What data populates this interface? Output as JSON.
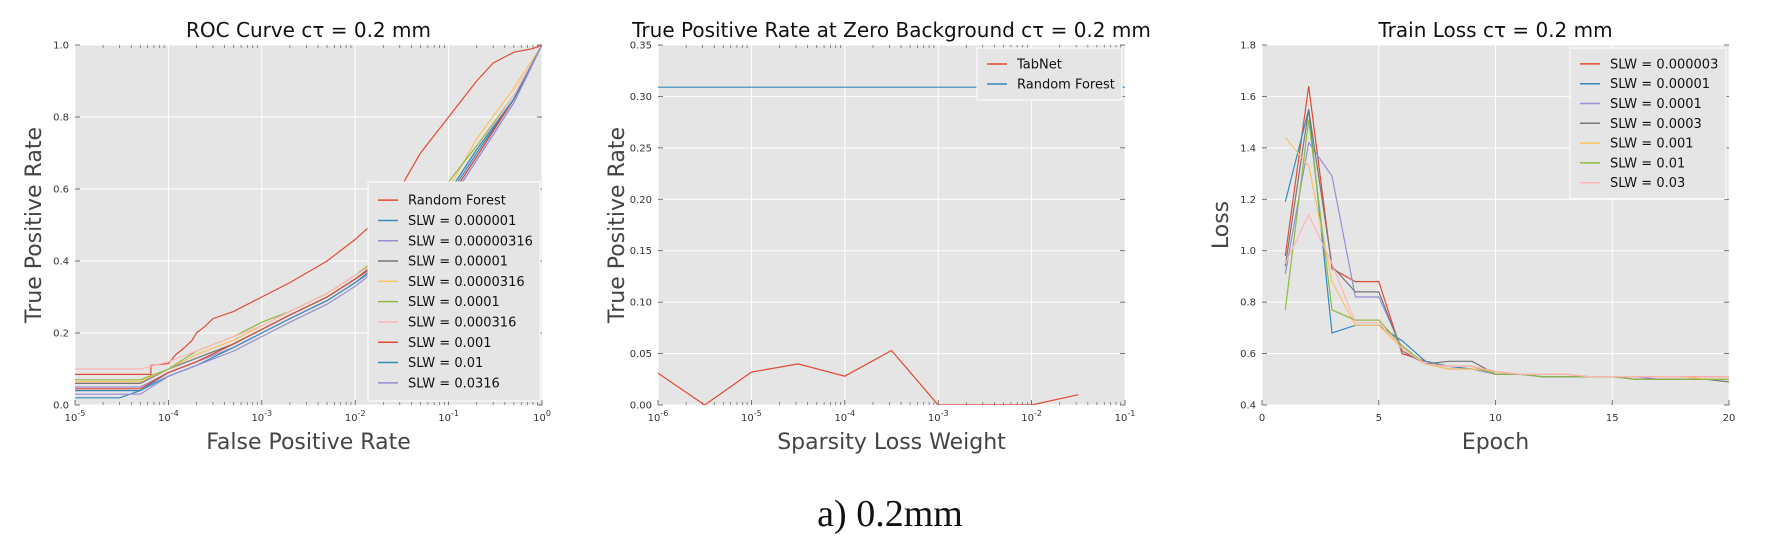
{
  "caption": "a) 0.2mm",
  "chart_data": [
    {
      "type": "line",
      "title": "ROC Curve cτ = 0.2 mm",
      "xlabel": "False Positive Rate",
      "ylabel": "True Positive Rate",
      "xscale": "log",
      "xlim": [
        1e-05,
        1
      ],
      "ylim": [
        0,
        1
      ],
      "xtick_labels": [
        "10-5",
        "10-4",
        "10-3",
        "10-2",
        "10-1",
        "100"
      ],
      "xticks": [
        1e-05,
        0.0001,
        0.001,
        0.01,
        0.1,
        1
      ],
      "ytick_labels": [
        "0.0",
        "0.2",
        "0.4",
        "0.6",
        "0.8",
        "1.0"
      ],
      "yticks": [
        0,
        0.2,
        0.4,
        0.6,
        0.8,
        1.0
      ],
      "grid": true,
      "legend": "lower-right",
      "series": [
        {
          "name": "Random Forest",
          "color": "#e24a33",
          "x": [
            1e-05,
            6.5e-05,
            6.5e-05,
            0.0001,
            0.00012,
            0.00015,
            0.00018,
            0.0002,
            0.00025,
            0.0003,
            0.0005,
            0.001,
            0.002,
            0.005,
            0.01,
            0.02,
            0.03,
            0.05,
            0.1,
            0.2,
            0.3,
            0.5,
            0.8,
            1
          ],
          "y": [
            0.085,
            0.085,
            0.11,
            0.115,
            0.14,
            0.16,
            0.18,
            0.2,
            0.22,
            0.24,
            0.26,
            0.3,
            0.34,
            0.4,
            0.46,
            0.53,
            0.6,
            0.7,
            0.8,
            0.9,
            0.95,
            0.98,
            0.99,
            1.0
          ]
        },
        {
          "name": "SLW = 0.000001",
          "color": "#348abd",
          "x": [
            1e-05,
            5e-05,
            0.0001,
            0.0002,
            0.0005,
            0.001,
            0.002,
            0.005,
            0.01,
            0.02,
            0.05,
            0.1,
            0.2,
            0.5,
            1
          ],
          "y": [
            0.04,
            0.04,
            0.09,
            0.12,
            0.17,
            0.21,
            0.25,
            0.3,
            0.35,
            0.4,
            0.5,
            0.58,
            0.7,
            0.85,
            1.0
          ]
        },
        {
          "name": "SLW = 0.00000316",
          "color": "#988ed5",
          "x": [
            1e-05,
            5e-05,
            0.0001,
            0.0002,
            0.0005,
            0.001,
            0.002,
            0.005,
            0.01,
            0.02,
            0.05,
            0.1,
            0.2,
            0.5,
            1
          ],
          "y": [
            0.05,
            0.05,
            0.09,
            0.12,
            0.16,
            0.2,
            0.24,
            0.29,
            0.34,
            0.39,
            0.48,
            0.56,
            0.68,
            0.84,
            1.0
          ]
        },
        {
          "name": "SLW = 0.00001",
          "color": "#777777",
          "x": [
            1e-05,
            5e-05,
            0.0001,
            0.0002,
            0.0005,
            0.001,
            0.002,
            0.005,
            0.01,
            0.02,
            0.05,
            0.1,
            0.2,
            0.5,
            1
          ],
          "y": [
            0.06,
            0.06,
            0.1,
            0.13,
            0.17,
            0.21,
            0.25,
            0.3,
            0.35,
            0.41,
            0.5,
            0.57,
            0.69,
            0.85,
            1.0
          ]
        },
        {
          "name": "SLW = 0.0000316",
          "color": "#fbc15e",
          "x": [
            1e-05,
            5e-05,
            0.0001,
            0.0002,
            0.0005,
            0.001,
            0.002,
            0.005,
            0.01,
            0.02,
            0.05,
            0.1,
            0.2,
            0.5,
            1
          ],
          "y": [
            0.065,
            0.065,
            0.1,
            0.14,
            0.18,
            0.22,
            0.26,
            0.31,
            0.36,
            0.42,
            0.52,
            0.6,
            0.74,
            0.88,
            1.0
          ]
        },
        {
          "name": "SLW = 0.0001",
          "color": "#8eba42",
          "x": [
            1e-05,
            5e-05,
            0.0001,
            0.0002,
            0.0005,
            0.001,
            0.002,
            0.005,
            0.01,
            0.02,
            0.05,
            0.1,
            0.2,
            0.5,
            1
          ],
          "y": [
            0.07,
            0.07,
            0.1,
            0.15,
            0.19,
            0.23,
            0.26,
            0.31,
            0.36,
            0.42,
            0.53,
            0.62,
            0.72,
            0.86,
            1.0
          ]
        },
        {
          "name": "SLW = 0.000316",
          "color": "#ffb5b8",
          "x": [
            1e-05,
            5e-05,
            0.0001,
            0.0002,
            0.0005,
            0.001,
            0.002,
            0.005,
            0.01,
            0.02,
            0.05,
            0.1,
            0.2,
            0.5,
            1
          ],
          "y": [
            0.1,
            0.1,
            0.12,
            0.15,
            0.19,
            0.22,
            0.26,
            0.31,
            0.36,
            0.41,
            0.51,
            0.59,
            0.71,
            0.86,
            1.0
          ]
        },
        {
          "name": "SLW = 0.001",
          "color": "#e24a33",
          "x": [
            1e-05,
            5e-05,
            0.0001,
            0.0002,
            0.0005,
            0.001,
            0.002,
            0.005,
            0.01,
            0.02,
            0.05,
            0.1,
            0.2,
            0.5,
            1
          ],
          "y": [
            0.045,
            0.045,
            0.09,
            0.12,
            0.17,
            0.21,
            0.25,
            0.3,
            0.35,
            0.4,
            0.49,
            0.57,
            0.69,
            0.85,
            1.0
          ]
        },
        {
          "name": "SLW = 0.01",
          "color": "#348abd",
          "x": [
            1e-05,
            3e-05,
            5e-05,
            0.0001,
            0.0002,
            0.0005,
            0.001,
            0.002,
            0.005,
            0.01,
            0.02,
            0.05,
            0.1,
            0.2,
            0.5,
            1
          ],
          "y": [
            0.02,
            0.02,
            0.04,
            0.08,
            0.11,
            0.16,
            0.2,
            0.24,
            0.29,
            0.34,
            0.4,
            0.5,
            0.59,
            0.71,
            0.85,
            1.0
          ]
        },
        {
          "name": "SLW = 0.0316",
          "color": "#988ed5",
          "x": [
            1e-05,
            5e-05,
            0.0001,
            0.0002,
            0.0005,
            0.001,
            0.002,
            0.005,
            0.01,
            0.02,
            0.05,
            0.1,
            0.2,
            0.5,
            1
          ],
          "y": [
            0.03,
            0.03,
            0.08,
            0.11,
            0.15,
            0.19,
            0.23,
            0.28,
            0.33,
            0.39,
            0.48,
            0.56,
            0.68,
            0.84,
            1.0
          ]
        }
      ]
    },
    {
      "type": "line",
      "title": "True Positive Rate at Zero Background cτ = 0.2 mm",
      "xlabel": "Sparsity Loss Weight",
      "ylabel": "True Positive Rate",
      "xscale": "log",
      "xlim": [
        1e-06,
        0.1
      ],
      "ylim": [
        0,
        0.35
      ],
      "xtick_labels": [
        "10-6",
        "10-5",
        "10-4",
        "10-3",
        "10-2",
        "10-1"
      ],
      "xticks": [
        1e-06,
        1e-05,
        0.0001,
        0.001,
        0.01,
        0.1
      ],
      "ytick_labels": [
        "0.00",
        "0.05",
        "0.10",
        "0.15",
        "0.20",
        "0.25",
        "0.30",
        "0.35"
      ],
      "yticks": [
        0,
        0.05,
        0.1,
        0.15,
        0.2,
        0.25,
        0.3,
        0.35
      ],
      "grid": true,
      "legend": "top-right",
      "series": [
        {
          "name": "TabNet",
          "color": "#e24a33",
          "x": [
            1e-06,
            3.16e-06,
            1e-05,
            3.16e-05,
            0.0001,
            0.000316,
            0.001,
            0.00316,
            0.01,
            0.0316
          ],
          "y": [
            0.031,
            0.0,
            0.032,
            0.04,
            0.028,
            0.053,
            0.0,
            0.0,
            0.0,
            0.01
          ]
        },
        {
          "name": "Random Forest",
          "color": "#348abd",
          "x": [
            1e-06,
            0.1
          ],
          "y": [
            0.309,
            0.309
          ]
        }
      ]
    },
    {
      "type": "line",
      "title": "Train Loss cτ = 0.2 mm",
      "xlabel": "Epoch",
      "ylabel": "Loss",
      "xscale": "linear",
      "xlim": [
        0,
        20
      ],
      "ylim": [
        0.4,
        1.8
      ],
      "xtick_labels": [
        "0",
        "5",
        "10",
        "15",
        "20"
      ],
      "xticks": [
        0,
        5,
        10,
        15,
        20
      ],
      "ytick_labels": [
        "0.4",
        "0.6",
        "0.8",
        "1.0",
        "1.2",
        "1.4",
        "1.6",
        "1.8"
      ],
      "yticks": [
        0.4,
        0.6,
        0.8,
        1.0,
        1.2,
        1.4,
        1.6,
        1.8
      ],
      "grid": true,
      "legend": "top-right",
      "series": [
        {
          "name": "SLW = 0.000003",
          "color": "#e24a33",
          "x": [
            1,
            2,
            3,
            4,
            5,
            6,
            7,
            8,
            9,
            10,
            11,
            12,
            13,
            14,
            15,
            16,
            17,
            18,
            19,
            20
          ],
          "y": [
            0.98,
            1.64,
            0.93,
            0.88,
            0.88,
            0.6,
            0.57,
            0.55,
            0.55,
            0.53,
            0.52,
            0.52,
            0.52,
            0.51,
            0.51,
            0.51,
            0.51,
            0.51,
            0.51,
            0.51
          ]
        },
        {
          "name": "SLW = 0.00001",
          "color": "#348abd",
          "x": [
            1,
            2,
            3,
            4,
            5,
            6,
            7,
            8,
            9,
            10,
            11,
            12,
            13,
            14,
            15,
            16,
            17,
            18,
            19,
            20
          ],
          "y": [
            1.19,
            1.55,
            0.68,
            0.71,
            0.71,
            0.65,
            0.57,
            0.55,
            0.54,
            0.52,
            0.52,
            0.51,
            0.51,
            0.51,
            0.51,
            0.5,
            0.5,
            0.5,
            0.5,
            0.5
          ]
        },
        {
          "name": "SLW = 0.0001",
          "color": "#988ed5",
          "x": [
            1,
            2,
            3,
            4,
            5,
            6,
            7,
            8,
            9,
            10,
            11,
            12,
            13,
            14,
            15,
            16,
            17,
            18,
            19,
            20
          ],
          "y": [
            0.91,
            1.42,
            1.29,
            0.82,
            0.82,
            0.62,
            0.56,
            0.54,
            0.54,
            0.52,
            0.52,
            0.51,
            0.51,
            0.51,
            0.51,
            0.51,
            0.5,
            0.5,
            0.5,
            0.5
          ]
        },
        {
          "name": "SLW = 0.0003",
          "color": "#777777",
          "x": [
            1,
            2,
            3,
            4,
            5,
            6,
            7,
            8,
            9,
            10,
            11,
            12,
            13,
            14,
            15,
            16,
            17,
            18,
            19,
            20
          ],
          "y": [
            0.94,
            1.55,
            0.94,
            0.84,
            0.84,
            0.61,
            0.56,
            0.57,
            0.57,
            0.52,
            0.52,
            0.51,
            0.51,
            0.51,
            0.51,
            0.5,
            0.5,
            0.5,
            0.5,
            0.49
          ]
        },
        {
          "name": "SLW = 0.001",
          "color": "#fbc15e",
          "x": [
            1,
            2,
            3,
            4,
            5,
            6,
            7,
            8,
            9,
            10,
            11,
            12,
            13,
            14,
            15,
            16,
            17,
            18,
            19,
            20
          ],
          "y": [
            1.44,
            1.33,
            0.88,
            0.71,
            0.71,
            0.62,
            0.56,
            0.54,
            0.54,
            0.53,
            0.52,
            0.52,
            0.52,
            0.51,
            0.51,
            0.51,
            0.51,
            0.51,
            0.5,
            0.5
          ]
        },
        {
          "name": "SLW = 0.01",
          "color": "#8eba42",
          "x": [
            1,
            2,
            3,
            4,
            5,
            6,
            7,
            8,
            9,
            10,
            11,
            12,
            13,
            14,
            15,
            16,
            17,
            18,
            19,
            20
          ],
          "y": [
            0.77,
            1.51,
            0.77,
            0.73,
            0.73,
            0.63,
            0.56,
            0.55,
            0.55,
            0.52,
            0.52,
            0.51,
            0.51,
            0.51,
            0.51,
            0.5,
            0.5,
            0.5,
            0.5,
            0.5
          ]
        },
        {
          "name": "SLW = 0.03",
          "color": "#ffb5b8",
          "x": [
            1,
            2,
            3,
            4,
            5,
            6,
            7,
            8,
            9,
            10,
            11,
            12,
            13,
            14,
            15,
            16,
            17,
            18,
            19,
            20
          ],
          "y": [
            0.95,
            1.14,
            0.95,
            0.72,
            0.72,
            0.62,
            0.56,
            0.55,
            0.55,
            0.53,
            0.52,
            0.52,
            0.52,
            0.51,
            0.51,
            0.51,
            0.51,
            0.51,
            0.51,
            0.51
          ]
        }
      ]
    }
  ]
}
